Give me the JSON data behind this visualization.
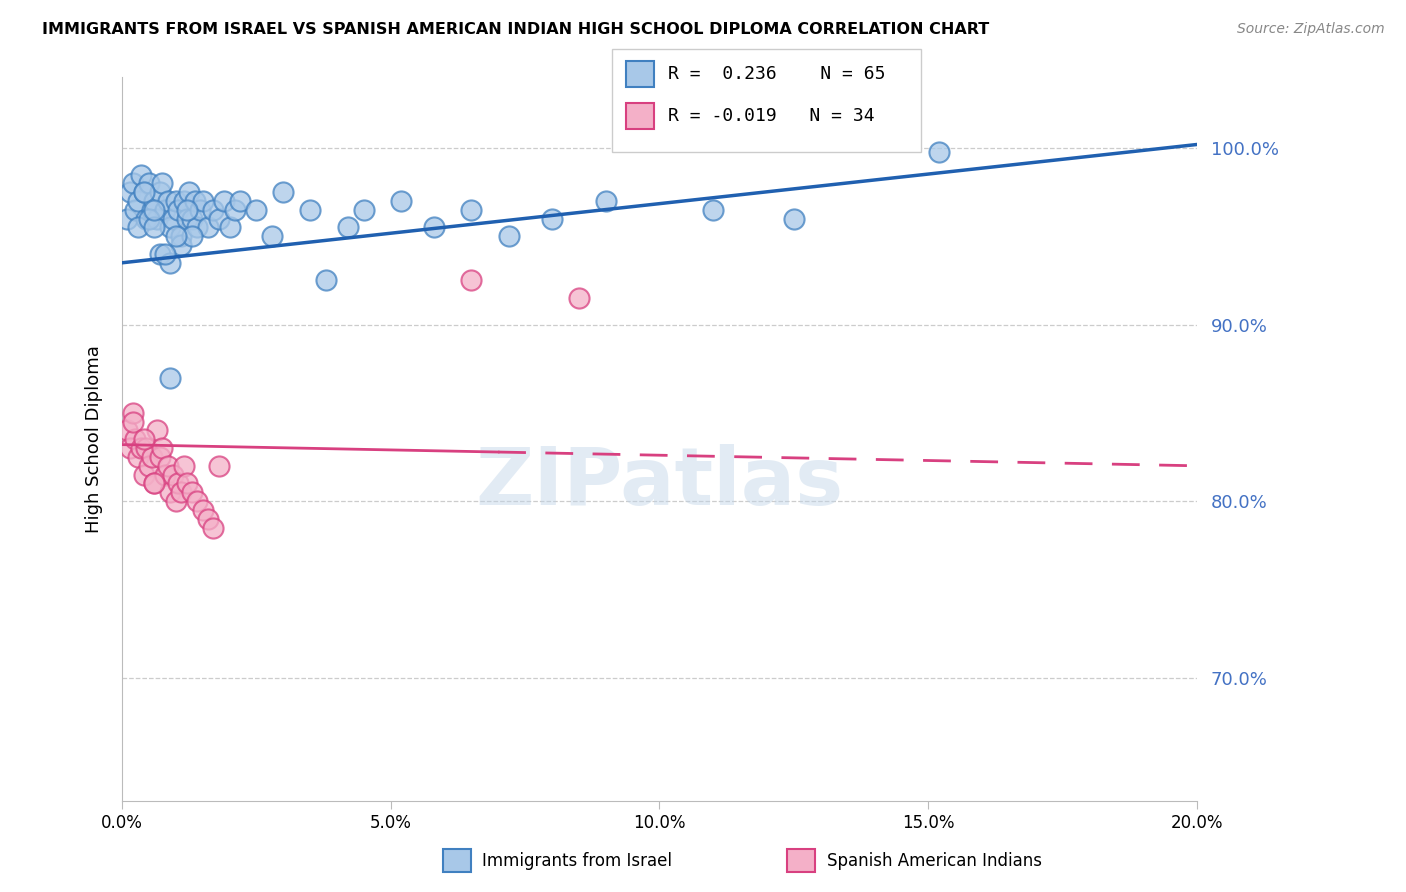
{
  "title": "IMMIGRANTS FROM ISRAEL VS SPANISH AMERICAN INDIAN HIGH SCHOOL DIPLOMA CORRELATION CHART",
  "source": "Source: ZipAtlas.com",
  "ylabel": "High School Diploma",
  "x_tick_labels": [
    "0.0%",
    "5.0%",
    "10.0%",
    "15.0%",
    "20.0%"
  ],
  "x_tick_values": [
    0.0,
    5.0,
    10.0,
    15.0,
    20.0
  ],
  "y_tick_labels": [
    "70.0%",
    "80.0%",
    "90.0%",
    "100.0%"
  ],
  "y_tick_values": [
    70.0,
    80.0,
    90.0,
    100.0
  ],
  "xlim": [
    0.0,
    20.0
  ],
  "ylim": [
    63.0,
    104.0
  ],
  "blue_face": "#a8c8e8",
  "blue_edge": "#4080c0",
  "pink_face": "#f4b0c8",
  "pink_edge": "#d84080",
  "line_blue_color": "#2060b0",
  "line_pink_color": "#d84080",
  "watermark": "ZIPatlas",
  "blue_x": [
    0.1,
    0.15,
    0.2,
    0.25,
    0.3,
    0.35,
    0.4,
    0.45,
    0.5,
    0.55,
    0.6,
    0.65,
    0.7,
    0.75,
    0.8,
    0.85,
    0.9,
    0.95,
    1.0,
    1.05,
    1.1,
    1.15,
    1.2,
    1.25,
    1.3,
    1.35,
    1.4,
    1.45,
    1.5,
    1.6,
    1.7,
    1.8,
    1.9,
    2.0,
    2.1,
    2.2,
    2.5,
    2.8,
    3.0,
    3.5,
    4.2,
    4.5,
    5.2,
    5.8,
    6.5,
    7.2,
    8.0,
    9.0,
    11.0,
    12.5,
    0.3,
    0.5,
    0.7,
    0.9,
    1.1,
    1.3,
    0.6,
    0.8,
    1.0,
    1.2,
    0.4,
    0.6,
    0.9,
    15.2,
    3.8
  ],
  "blue_y": [
    96.0,
    97.5,
    98.0,
    96.5,
    97.0,
    98.5,
    97.5,
    96.0,
    98.0,
    96.5,
    97.0,
    96.0,
    97.5,
    98.0,
    96.5,
    97.0,
    95.5,
    96.0,
    97.0,
    96.5,
    95.0,
    97.0,
    96.0,
    97.5,
    96.0,
    97.0,
    95.5,
    96.5,
    97.0,
    95.5,
    96.5,
    96.0,
    97.0,
    95.5,
    96.5,
    97.0,
    96.5,
    95.0,
    97.5,
    96.5,
    95.5,
    96.5,
    97.0,
    95.5,
    96.5,
    95.0,
    96.0,
    97.0,
    96.5,
    96.0,
    95.5,
    96.0,
    94.0,
    93.5,
    94.5,
    95.0,
    95.5,
    94.0,
    95.0,
    96.5,
    97.5,
    96.5,
    87.0,
    99.8,
    92.5
  ],
  "pink_x": [
    0.1,
    0.15,
    0.2,
    0.25,
    0.3,
    0.35,
    0.4,
    0.45,
    0.5,
    0.55,
    0.6,
    0.65,
    0.7,
    0.75,
    0.8,
    0.85,
    0.9,
    0.95,
    1.0,
    1.05,
    1.1,
    1.15,
    1.2,
    1.3,
    1.4,
    1.5,
    1.6,
    1.7,
    1.8,
    0.2,
    0.4,
    0.6,
    8.5,
    6.5
  ],
  "pink_y": [
    84.0,
    83.0,
    85.0,
    83.5,
    82.5,
    83.0,
    81.5,
    83.0,
    82.0,
    82.5,
    81.0,
    84.0,
    82.5,
    83.0,
    81.5,
    82.0,
    80.5,
    81.5,
    80.0,
    81.0,
    80.5,
    82.0,
    81.0,
    80.5,
    80.0,
    79.5,
    79.0,
    78.5,
    82.0,
    84.5,
    83.5,
    81.0,
    91.5,
    92.5
  ],
  "blue_line_x0": 0.0,
  "blue_line_x1": 20.0,
  "blue_line_y0": 93.5,
  "blue_line_y1": 100.2,
  "pink_line_x0": 0.0,
  "pink_line_x1": 20.0,
  "pink_line_y0": 83.2,
  "pink_line_y1": 82.0,
  "pink_solid_end": 7.0
}
